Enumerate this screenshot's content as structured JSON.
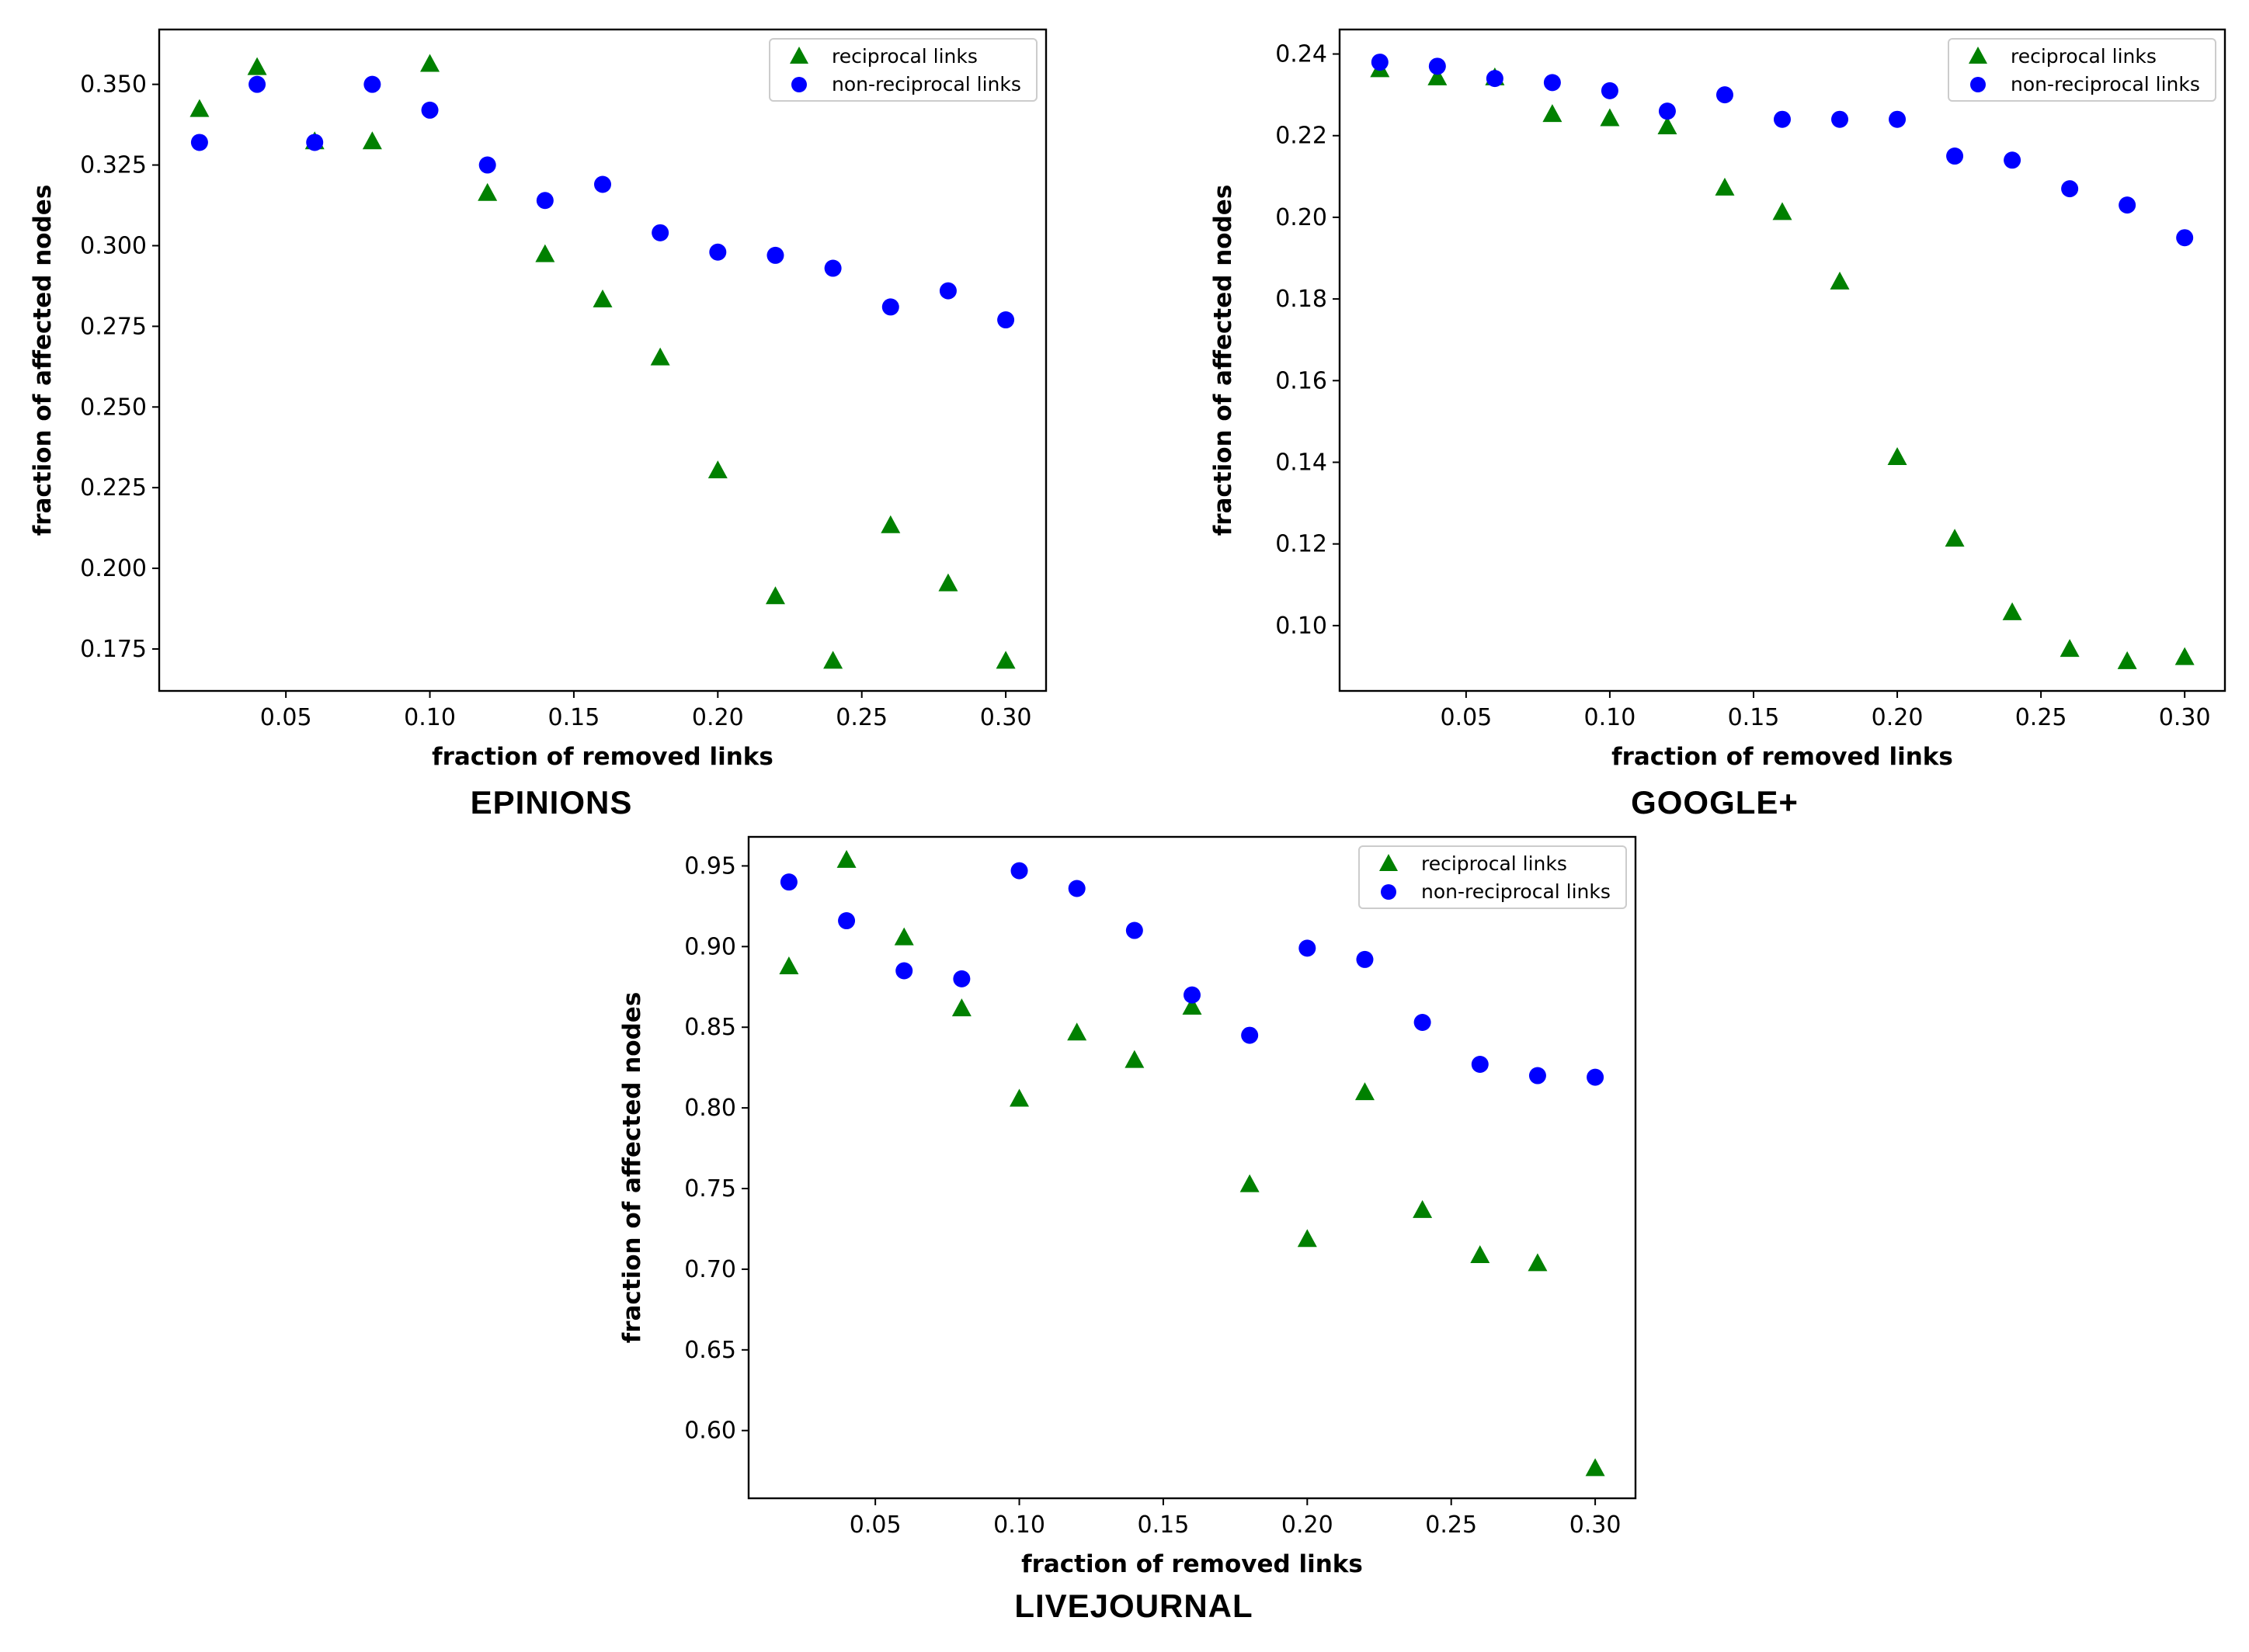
{
  "chart_data": [
    {
      "type": "scatter",
      "title": "EPINIONS",
      "xlabel": "fraction of removed links",
      "ylabel": "fraction of affected nodes",
      "xlim": [
        0.006,
        0.314
      ],
      "ylim": [
        0.162,
        0.367
      ],
      "xticks": [
        0.05,
        0.1,
        0.15,
        0.2,
        0.25,
        0.3
      ],
      "xtick_labels": [
        "0.05",
        "0.10",
        "0.15",
        "0.20",
        "0.25",
        "0.30"
      ],
      "yticks": [
        0.175,
        0.2,
        0.225,
        0.25,
        0.275,
        0.3,
        0.325,
        0.35
      ],
      "ytick_labels": [
        "0.175",
        "0.200",
        "0.225",
        "0.250",
        "0.275",
        "0.300",
        "0.325",
        "0.350"
      ],
      "legend_position": "top-right",
      "x": [
        0.02,
        0.04,
        0.06,
        0.08,
        0.1,
        0.12,
        0.14,
        0.16,
        0.18,
        0.2,
        0.22,
        0.24,
        0.26,
        0.28,
        0.3
      ],
      "series": [
        {
          "name": "reciprocal links",
          "marker": "triangle",
          "color": "#008000",
          "values": [
            0.342,
            0.355,
            0.332,
            0.332,
            0.356,
            0.316,
            0.297,
            0.283,
            0.265,
            0.23,
            0.191,
            0.171,
            0.213,
            0.195,
            0.171
          ]
        },
        {
          "name": "non-reciprocal links",
          "marker": "circle",
          "color": "#0000ff",
          "values": [
            0.332,
            0.35,
            0.332,
            0.35,
            0.342,
            0.325,
            0.314,
            0.319,
            0.304,
            0.298,
            0.297,
            0.293,
            0.281,
            0.286,
            0.277
          ]
        }
      ]
    },
    {
      "type": "scatter",
      "title": "GOOGLE+",
      "xlabel": "fraction of removed links",
      "ylabel": "fraction of affected nodes",
      "xlim": [
        0.006,
        0.314
      ],
      "ylim": [
        0.084,
        0.246
      ],
      "xticks": [
        0.05,
        0.1,
        0.15,
        0.2,
        0.25,
        0.3
      ],
      "xtick_labels": [
        "0.05",
        "0.10",
        "0.15",
        "0.20",
        "0.25",
        "0.30"
      ],
      "yticks": [
        0.1,
        0.12,
        0.14,
        0.16,
        0.18,
        0.2,
        0.22,
        0.24
      ],
      "ytick_labels": [
        "0.10",
        "0.12",
        "0.14",
        "0.16",
        "0.18",
        "0.20",
        "0.22",
        "0.24"
      ],
      "legend_position": "top-right",
      "x": [
        0.02,
        0.04,
        0.06,
        0.08,
        0.1,
        0.12,
        0.14,
        0.16,
        0.18,
        0.2,
        0.22,
        0.24,
        0.26,
        0.28,
        0.3
      ],
      "series": [
        {
          "name": "reciprocal links",
          "marker": "triangle",
          "color": "#008000",
          "values": [
            0.236,
            0.234,
            0.234,
            0.225,
            0.224,
            0.222,
            0.207,
            0.201,
            0.184,
            0.141,
            0.121,
            0.103,
            0.094,
            0.091,
            0.092
          ]
        },
        {
          "name": "non-reciprocal links",
          "marker": "circle",
          "color": "#0000ff",
          "values": [
            0.238,
            0.237,
            0.234,
            0.233,
            0.231,
            0.226,
            0.23,
            0.224,
            0.224,
            0.224,
            0.215,
            0.214,
            0.207,
            0.203,
            0.195
          ]
        }
      ]
    },
    {
      "type": "scatter",
      "title": "LIVEJOURNAL",
      "xlabel": "fraction of removed links",
      "ylabel": "fraction of affected nodes",
      "xlim": [
        0.006,
        0.314
      ],
      "ylim": [
        0.558,
        0.968
      ],
      "xticks": [
        0.05,
        0.1,
        0.15,
        0.2,
        0.25,
        0.3
      ],
      "xtick_labels": [
        "0.05",
        "0.10",
        "0.15",
        "0.20",
        "0.25",
        "0.30"
      ],
      "yticks": [
        0.6,
        0.65,
        0.7,
        0.75,
        0.8,
        0.85,
        0.9,
        0.95
      ],
      "ytick_labels": [
        "0.60",
        "0.65",
        "0.70",
        "0.75",
        "0.80",
        "0.85",
        "0.90",
        "0.95"
      ],
      "legend_position": "top-right",
      "x": [
        0.02,
        0.04,
        0.06,
        0.08,
        0.1,
        0.12,
        0.14,
        0.16,
        0.18,
        0.2,
        0.22,
        0.24,
        0.26,
        0.28,
        0.3
      ],
      "series": [
        {
          "name": "reciprocal links",
          "marker": "triangle",
          "color": "#008000",
          "values": [
            0.887,
            0.953,
            0.905,
            0.861,
            0.805,
            0.846,
            0.829,
            0.862,
            0.752,
            0.718,
            0.809,
            0.736,
            0.708,
            0.703,
            0.576
          ]
        },
        {
          "name": "non-reciprocal links",
          "marker": "circle",
          "color": "#0000ff",
          "values": [
            0.94,
            0.916,
            0.885,
            0.88,
            0.947,
            0.936,
            0.91,
            0.87,
            0.845,
            0.899,
            0.892,
            0.853,
            0.827,
            0.82,
            0.819
          ]
        }
      ]
    }
  ]
}
